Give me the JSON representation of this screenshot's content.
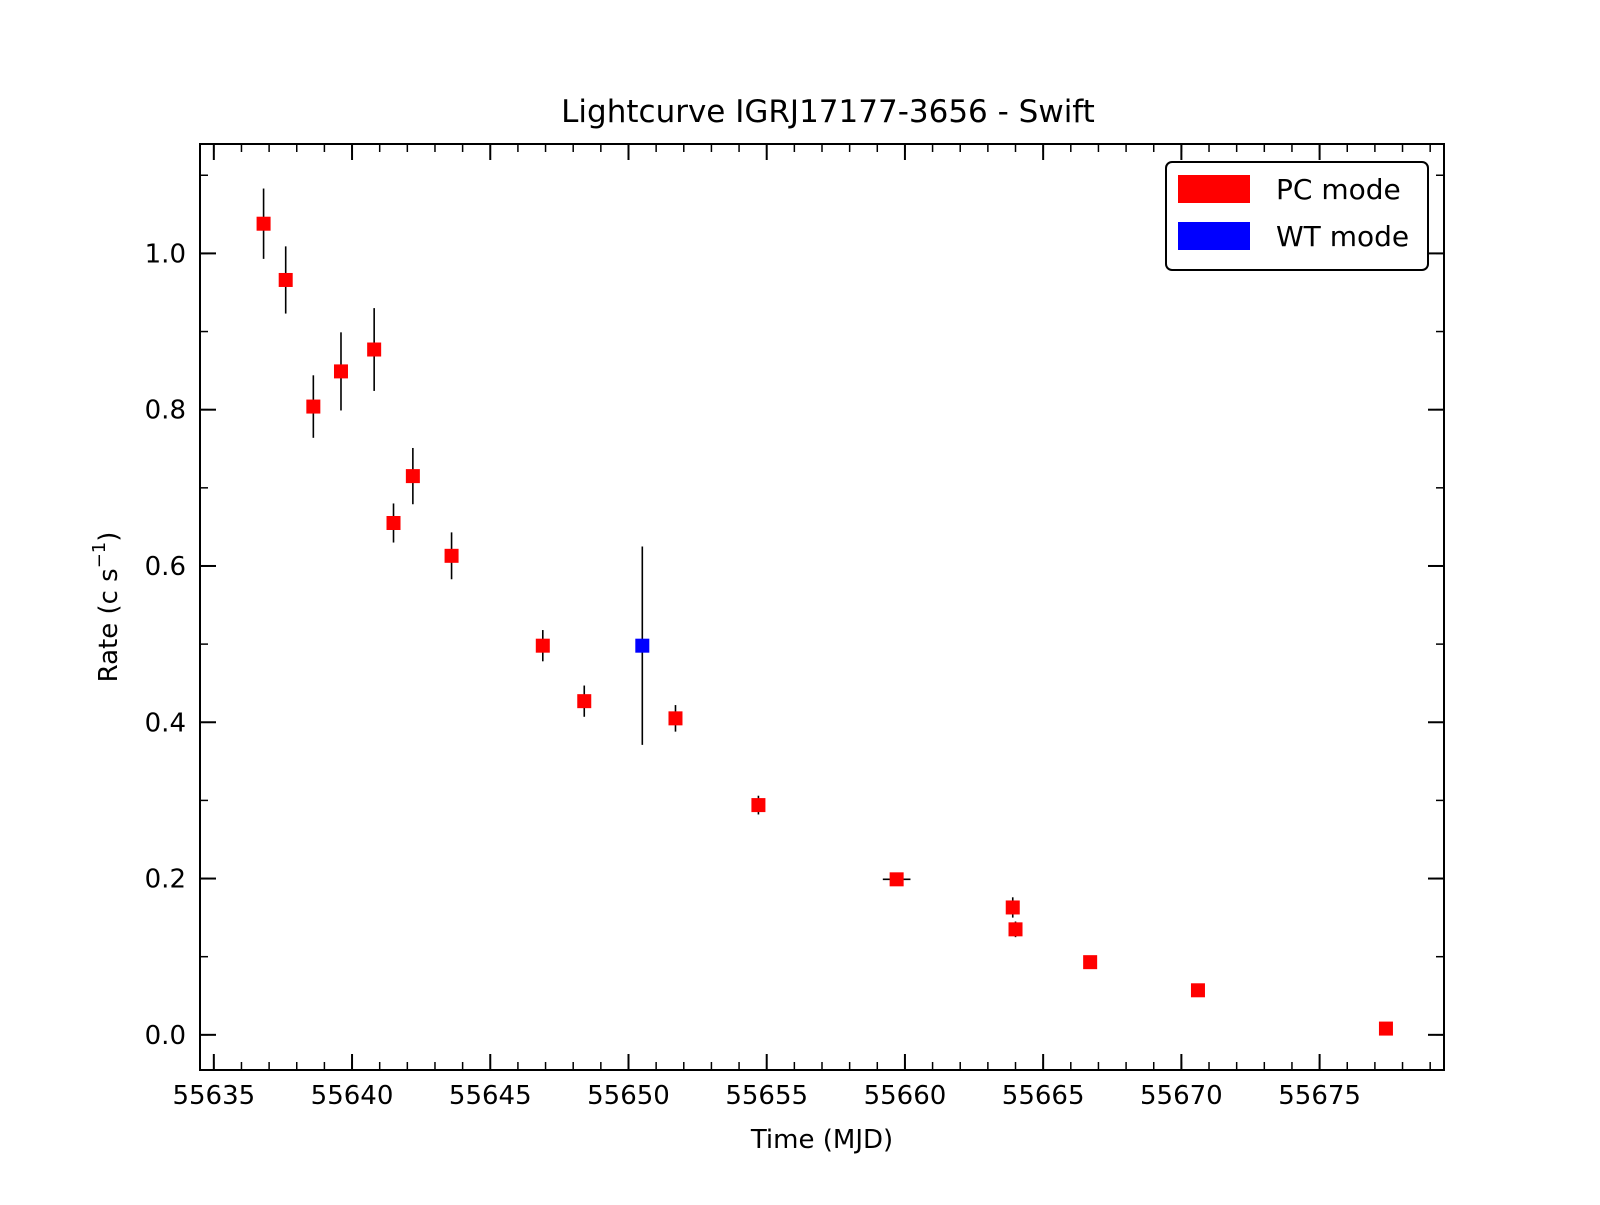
{
  "chart_data": {
    "type": "scatter",
    "title": "Lightcurve IGRJ17177-3656 - Swift",
    "xlabel": "Time (MJD)",
    "ylabel": {
      "base": "Rate (c s",
      "superscript": "−1",
      "suffix": ")"
    },
    "xlim": [
      55634.5,
      55679.5
    ],
    "ylim": [
      -0.045,
      1.14
    ],
    "x_ticks": [
      55635,
      55640,
      55645,
      55650,
      55655,
      55660,
      55665,
      55670,
      55675
    ],
    "y_ticks": [
      0.0,
      0.2,
      0.4,
      0.6,
      0.8,
      1.0
    ],
    "y_tick_labels": [
      "0.0",
      "0.2",
      "0.4",
      "0.6",
      "0.8",
      "1.0"
    ],
    "x_minor_step": 1,
    "y_minor_step": 0.1,
    "grid": false,
    "legend_position": "top-right",
    "series": [
      {
        "name": "PC mode",
        "color": "#ff0000",
        "marker": "square",
        "points": [
          {
            "x": 55636.8,
            "y": 1.038,
            "yerr": 0.045,
            "xerr": 0.0
          },
          {
            "x": 55637.6,
            "y": 0.966,
            "yerr": 0.043,
            "xerr": 0.0
          },
          {
            "x": 55638.6,
            "y": 0.804,
            "yerr": 0.04,
            "xerr": 0.0
          },
          {
            "x": 55639.6,
            "y": 0.849,
            "yerr": 0.05,
            "xerr": 0.0
          },
          {
            "x": 55640.8,
            "y": 0.877,
            "yerr": 0.053,
            "xerr": 0.0
          },
          {
            "x": 55641.5,
            "y": 0.655,
            "yerr": 0.025,
            "xerr": 0.0
          },
          {
            "x": 55642.2,
            "y": 0.715,
            "yerr": 0.036,
            "xerr": 0.0
          },
          {
            "x": 55643.6,
            "y": 0.613,
            "yerr": 0.03,
            "xerr": 0.0
          },
          {
            "x": 55646.9,
            "y": 0.498,
            "yerr": 0.02,
            "xerr": 0.0
          },
          {
            "x": 55648.4,
            "y": 0.427,
            "yerr": 0.02,
            "xerr": 0.0
          },
          {
            "x": 55651.7,
            "y": 0.405,
            "yerr": 0.017,
            "xerr": 0.0
          },
          {
            "x": 55654.7,
            "y": 0.294,
            "yerr": 0.012,
            "xerr": 0.0
          },
          {
            "x": 55659.7,
            "y": 0.199,
            "yerr": 0.005,
            "xerr": 0.5
          },
          {
            "x": 55663.9,
            "y": 0.163,
            "yerr": 0.013,
            "xerr": 0.0
          },
          {
            "x": 55664.0,
            "y": 0.135,
            "yerr": 0.01,
            "xerr": 0.0
          },
          {
            "x": 55666.7,
            "y": 0.093,
            "yerr": 0.005,
            "xerr": 0.0
          },
          {
            "x": 55670.6,
            "y": 0.057,
            "yerr": 0.005,
            "xerr": 0.0
          },
          {
            "x": 55677.4,
            "y": 0.008,
            "yerr": 0.004,
            "xerr": 0.0
          }
        ]
      },
      {
        "name": "WT mode",
        "color": "#0000ff",
        "marker": "square",
        "points": [
          {
            "x": 55650.5,
            "y": 0.498,
            "yerr": 0.127,
            "xerr": 0.0
          }
        ]
      }
    ]
  }
}
